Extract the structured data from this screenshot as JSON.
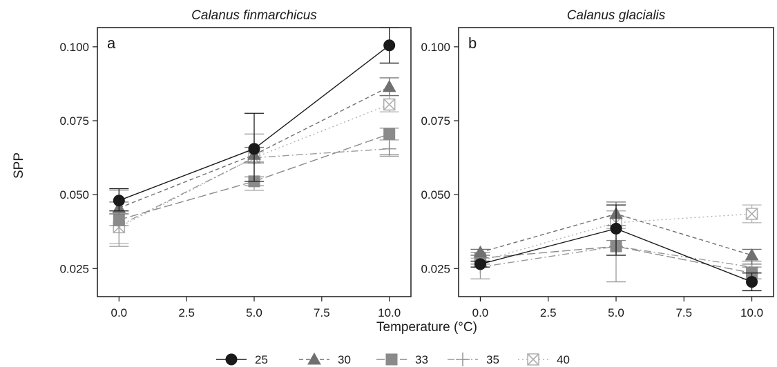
{
  "figure": {
    "ylabel": "SPP",
    "xlabel": "Temperature (°C)"
  },
  "chart_data": {
    "type": "line",
    "xlim": [
      -0.8,
      10.8
    ],
    "ylim": [
      0.0155,
      0.1065
    ],
    "x_ticks": [
      0.0,
      2.5,
      5.0,
      7.5,
      10.0
    ],
    "x_tick_labels": [
      "0.0",
      "2.5",
      "5.0",
      "7.5",
      "10.0"
    ],
    "y_ticks": [
      0.025,
      0.05,
      0.075,
      0.1
    ],
    "y_tick_labels": [
      "0.025",
      "0.050",
      "0.075",
      "0.100"
    ],
    "grid": false,
    "legend": {
      "position": "bottom",
      "entries": [
        "25",
        "30",
        "33",
        "35",
        "40"
      ]
    },
    "panels": [
      {
        "title": "Calanus finmarchicus",
        "letter": "a",
        "x": [
          0,
          5,
          10
        ],
        "series": [
          {
            "name": "25",
            "marker": "circle",
            "color": "#1a1a1a",
            "line": "solid",
            "values": [
              0.048,
              0.0655,
              0.1005
            ],
            "err_low": [
              0.0445,
              0.0545,
              0.0945
            ],
            "err_high": [
              0.052,
              0.0775,
              0.1065
            ]
          },
          {
            "name": "30",
            "marker": "triangle",
            "color": "#707070",
            "line": "dashed",
            "values": [
              0.0455,
              0.0635,
              0.0865
            ],
            "err_low": [
              0.0435,
              0.061,
              0.0835
            ],
            "err_high": [
              0.0475,
              0.066,
              0.0895
            ]
          },
          {
            "name": "33",
            "marker": "square",
            "color": "#8a8a8a",
            "line": "longdash",
            "values": [
              0.0415,
              0.0545,
              0.0705
            ],
            "err_low": [
              0.0395,
              0.053,
              0.0635
            ],
            "err_high": [
              0.0435,
              0.056,
              0.0725
            ]
          },
          {
            "name": "35",
            "marker": "plus",
            "color": "#9a9a9a",
            "line": "dashdot",
            "values": [
              0.0395,
              0.0625,
              0.0655
            ],
            "err_low": [
              0.0325,
              0.0515,
              0.063
            ],
            "err_high": [
              0.0515,
              0.0705,
              0.0685
            ]
          },
          {
            "name": "40",
            "marker": "boxx",
            "color": "#b0b0b0",
            "line": "dotted",
            "values": [
              0.039,
              0.0625,
              0.0805
            ],
            "err_low": [
              0.0335,
              0.0605,
              0.078
            ],
            "err_high": [
              0.0435,
              0.0645,
              0.0835
            ]
          }
        ]
      },
      {
        "title": "Calanus glacialis",
        "letter": "b",
        "x": [
          0,
          5,
          10
        ],
        "series": [
          {
            "name": "25",
            "marker": "circle",
            "color": "#1a1a1a",
            "line": "solid",
            "values": [
              0.0265,
              0.0385,
              0.0205
            ],
            "err_low": [
              0.0255,
              0.0295,
              0.0175
            ],
            "err_high": [
              0.0275,
              0.0465,
              0.0235
            ]
          },
          {
            "name": "30",
            "marker": "triangle",
            "color": "#707070",
            "line": "dashed",
            "values": [
              0.0305,
              0.0435,
              0.0295
            ],
            "err_low": [
              0.0295,
              0.0395,
              0.0265
            ],
            "err_high": [
              0.0315,
              0.0475,
              0.0315
            ]
          },
          {
            "name": "33",
            "marker": "square",
            "color": "#8a8a8a",
            "line": "longdash",
            "values": [
              0.0285,
              0.0325,
              0.0235
            ],
            "err_low": [
              0.0265,
              0.0295,
              0.0215
            ],
            "err_high": [
              0.0305,
              0.0345,
              0.0255
            ]
          },
          {
            "name": "35",
            "marker": "plus",
            "color": "#9a9a9a",
            "line": "dashdot",
            "values": [
              0.0255,
              0.0325,
              0.0255
            ],
            "err_low": [
              0.0215,
              0.0205,
              0.0235
            ],
            "err_high": [
              0.0295,
              0.0445,
              0.0275
            ]
          },
          {
            "name": "40",
            "marker": "boxx",
            "color": "#b0b0b0",
            "line": "dotted",
            "values": [
              0.0275,
              0.0405,
              0.0435
            ],
            "err_low": [
              0.0265,
              0.0385,
              0.0405
            ],
            "err_high": [
              0.0285,
              0.0425,
              0.0465
            ]
          }
        ]
      }
    ]
  }
}
